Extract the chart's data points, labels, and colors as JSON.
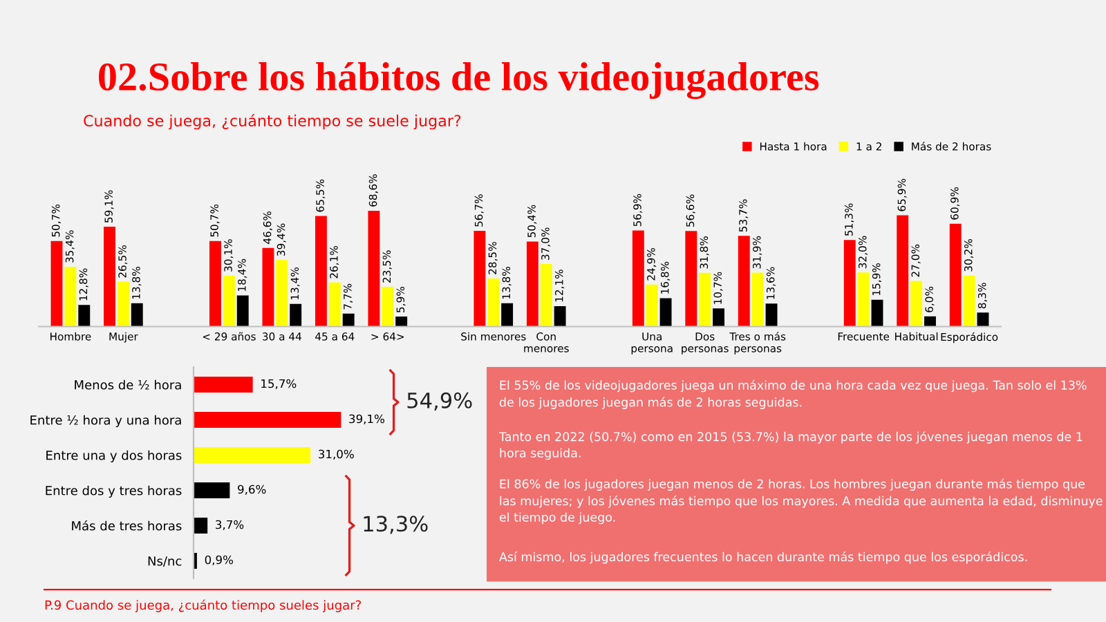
{
  "chart_data": [
    {
      "type": "bar",
      "title": "02.Sobre los hábitos de los videojugadores",
      "subtitle": "Cuando se juega, ¿cuánto tiempo se suele jugar?",
      "legend": "top right",
      "tick_labels": "x",
      "grid": false,
      "categories": [
        "Hombre",
        "Mujer",
        null,
        "< 29 años",
        "30 a 44",
        "45 a 64",
        "> 64>",
        null,
        "Sin menores",
        "Con\nmenores",
        null,
        "Una\npersona",
        "Dos\npersonas",
        "Tres o más\npersonas",
        null,
        "Frecuente",
        "Habitual",
        "Esporádico"
      ],
      "series": [
        {
          "name": "Hasta 1 hora",
          "color": "#ff0000",
          "values": [
            50.7,
            59.1,
            null,
            50.7,
            46.6,
            65.5,
            68.6,
            null,
            56.7,
            50.4,
            null,
            56.9,
            56.6,
            53.7,
            null,
            51.3,
            65.9,
            60.9
          ],
          "value_labels": [
            "50,7%",
            "59,1%",
            null,
            "50,7%",
            "46,6%",
            "65,5%",
            "68,6%",
            null,
            "56,7%",
            "50,4%",
            null,
            "56,9%",
            "56,6%",
            "53,7%",
            null,
            "51,3%",
            "65,9%",
            "60,9%"
          ]
        },
        {
          "name": "1 a 2",
          "color": "#ffff00",
          "values": [
            35.4,
            26.5,
            null,
            30.1,
            39.4,
            26.1,
            23.5,
            null,
            28.5,
            37.0,
            null,
            24.9,
            31.8,
            31.9,
            null,
            32.0,
            27.0,
            30.2
          ],
          "value_labels": [
            "35,4%",
            "26,5%",
            null,
            "30,1%",
            "39,4%",
            "26,1%",
            "23,5%",
            null,
            "28,5%",
            "37,0%",
            null,
            "24,9%",
            "31,8%",
            "31,9%",
            null,
            "32,0%",
            "27,0%",
            "30,2%"
          ]
        },
        {
          "name": "Más de 2 horas",
          "color": "#000000",
          "values": [
            12.8,
            13.8,
            null,
            18.4,
            13.4,
            7.7,
            5.9,
            null,
            13.8,
            12.1,
            null,
            16.8,
            10.7,
            13.6,
            null,
            15.9,
            6.0,
            8.3
          ],
          "value_labels": [
            "12,8%",
            "13,8%",
            null,
            "18,4%",
            "13,4%",
            "7,7%",
            "5,9%",
            null,
            "13,8%",
            "12,1%",
            null,
            "16,8%",
            "10,7%",
            "13,6%",
            null,
            "15,9%",
            "6,0%",
            "8,3%"
          ]
        }
      ]
    },
    {
      "type": "bar",
      "orientation": "horizontal",
      "tick_labels": "y",
      "grid": false,
      "categories": [
        "Menos de ½ hora",
        "Entre ½ hora y una hora",
        "Entre una y dos horas",
        "Entre dos y tres horas",
        "Más de tres horas",
        "Ns/nc"
      ],
      "values": [
        15.7,
        39.1,
        31.0,
        9.6,
        3.7,
        0.9
      ],
      "colors": [
        "#ff0000",
        "#ff0000",
        "#ffff00",
        "#000000",
        "#000000",
        "#000000"
      ],
      "value_labels": [
        "15,7%",
        "39,1%",
        "31,0%",
        "9,6%",
        "3,7%",
        "0,9%"
      ],
      "annotations": [
        "54,9%",
        "13,3%",
        "P.9 Cuando se juega, ¿cuánto tiempo sueles jugar?"
      ]
    },
    {
      "type": "other",
      "annotations": [
        "El 55% de los videojugadores juega un máximo de una hora cada vez que juega. Tan solo el 13% de los jugadores juegan más de 2 horas seguidas.",
        "Tanto en 2022 (50.7%) como en 2015 (53.7%) la mayor parte de los jóvenes juegan menos de 1 hora seguida.",
        "El 86% de los jugadores juegan menos de 2 horas. Los hombres juegan durante más tiempo que las mujeres; y los jóvenes más tiempo que los mayores. A medida que aumenta la edad, disminuye el tiempo de juego.",
        "Así mismo, los jugadores frecuentes lo hacen durante más tiempo que los esporádicos."
      ]
    }
  ]
}
